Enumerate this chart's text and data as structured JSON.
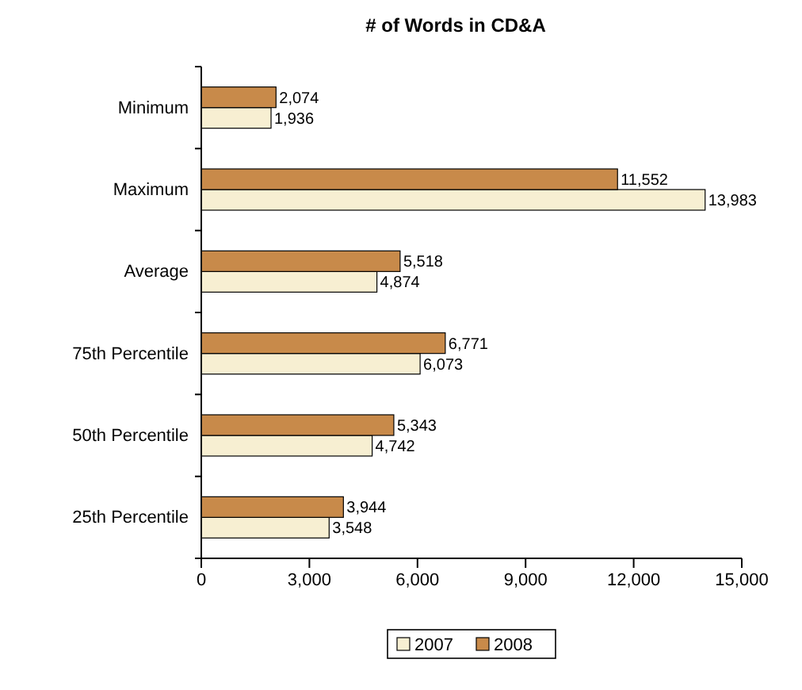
{
  "chart_data": {
    "type": "bar",
    "orientation": "horizontal",
    "title": "# of Words in CD&A",
    "categories": [
      "Minimum",
      "Maximum",
      "Average",
      "75th Percentile",
      "50th Percentile",
      "25th Percentile"
    ],
    "series": [
      {
        "name": "2007",
        "color": "#f7efd2",
        "values": [
          1936,
          13983,
          4874,
          6073,
          4742,
          3548
        ],
        "value_labels": [
          "1,936",
          "13,983",
          "4,874",
          "6,073",
          "4,742",
          "3,548"
        ]
      },
      {
        "name": "2008",
        "color": "#c88a4a",
        "values": [
          2074,
          11552,
          5518,
          6771,
          5343,
          3944
        ],
        "value_labels": [
          "2,074",
          "11,552",
          "5,518",
          "6,771",
          "5,343",
          "3,944"
        ]
      }
    ],
    "xlim": [
      0,
      15000
    ],
    "xticks": [
      {
        "value": 0,
        "label": "0"
      },
      {
        "value": 3000,
        "label": "3,000"
      },
      {
        "value": 6000,
        "label": "6,000"
      },
      {
        "value": 9000,
        "label": "9,000"
      },
      {
        "value": 12000,
        "label": "12,000"
      },
      {
        "value": 15000,
        "label": "15,000"
      }
    ],
    "grid": false,
    "legend": "bottom"
  }
}
